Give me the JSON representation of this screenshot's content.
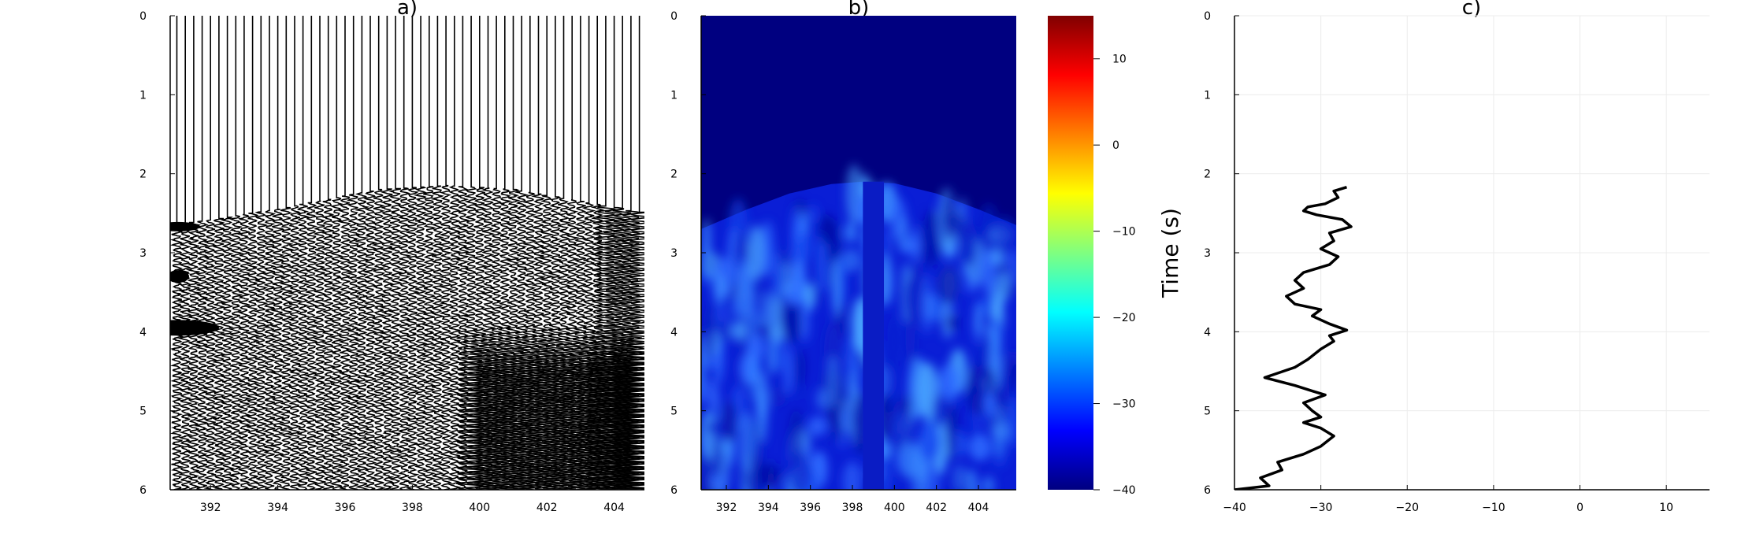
{
  "chart_data": [
    {
      "type": "line",
      "title": "a)",
      "xlabel": "",
      "ylabel": "",
      "xlim": [
        390.8,
        404.9
      ],
      "ylim": [
        0,
        6
      ],
      "y_reversed": true,
      "xticks": [
        "392",
        "394",
        "396",
        "398",
        "400",
        "402",
        "404"
      ],
      "yticks": [
        "0",
        "1",
        "2",
        "3",
        "4",
        "5",
        "6"
      ],
      "trace_spacing": 0.25,
      "first_arrival_time_at_x": {
        "x": [
          391,
          394,
          397,
          399,
          401,
          403,
          404.9
        ],
        "y": [
          2.65,
          2.45,
          2.2,
          2.15,
          2.2,
          2.35,
          2.5
        ]
      },
      "series": [],
      "grid": false
    },
    {
      "type": "heatmap",
      "title": "b)",
      "xlabel": "",
      "ylabel": "",
      "xlim": [
        390.8,
        405.8
      ],
      "ylim": [
        0,
        6
      ],
      "y_reversed": true,
      "xticks": [
        "392",
        "394",
        "396",
        "398",
        "400",
        "402",
        "404"
      ],
      "yticks": [
        "0",
        "1",
        "2",
        "3",
        "4",
        "5",
        "6"
      ],
      "colormap": "jet",
      "background_value": -40,
      "mute_boundary": {
        "x": [
          390.8,
          393,
          395,
          397,
          398.5,
          400,
          402,
          404,
          405.8
        ],
        "y": [
          2.7,
          2.45,
          2.25,
          2.13,
          2.1,
          2.12,
          2.25,
          2.45,
          2.65
        ]
      },
      "dead_trace_x": [
        398.5,
        399.5
      ],
      "colorbar": {
        "range": [
          -40,
          15
        ],
        "ticks": [
          10,
          0,
          -10,
          -20,
          -30,
          -40
        ],
        "tick_labels": [
          "10",
          "0",
          "−10",
          "−20",
          "−30",
          "−40"
        ]
      }
    },
    {
      "type": "line",
      "title": "c)",
      "xlabel": "",
      "ylabel": "Time (s)",
      "xlim": [
        -40,
        15
      ],
      "ylim": [
        0,
        6
      ],
      "y_reversed": true,
      "xticks": [
        "−40",
        "−30",
        "−20",
        "−10",
        "0",
        "10"
      ],
      "yticks": [
        "0",
        "1",
        "2",
        "3",
        "4",
        "5",
        "6"
      ],
      "grid": true,
      "series": [
        {
          "color": "#000000",
          "points": [
            [
              -27,
              2.17
            ],
            [
              -28.5,
              2.22
            ],
            [
              -28,
              2.3
            ],
            [
              -29.5,
              2.38
            ],
            [
              -31.5,
              2.42
            ],
            [
              -32,
              2.47
            ],
            [
              -30.5,
              2.52
            ],
            [
              -27.5,
              2.58
            ],
            [
              -26.5,
              2.67
            ],
            [
              -29,
              2.75
            ],
            [
              -28.5,
              2.85
            ],
            [
              -30,
              2.95
            ],
            [
              -28,
              3.05
            ],
            [
              -29,
              3.15
            ],
            [
              -32,
              3.25
            ],
            [
              -33,
              3.35
            ],
            [
              -32,
              3.45
            ],
            [
              -34,
              3.55
            ],
            [
              -33,
              3.65
            ],
            [
              -30,
              3.72
            ],
            [
              -31,
              3.8
            ],
            [
              -29,
              3.9
            ],
            [
              -27,
              3.98
            ],
            [
              -29,
              4.05
            ],
            [
              -28.5,
              4.12
            ],
            [
              -30,
              4.22
            ],
            [
              -31.5,
              4.35
            ],
            [
              -33,
              4.45
            ],
            [
              -36.5,
              4.58
            ],
            [
              -33,
              4.68
            ],
            [
              -31,
              4.75
            ],
            [
              -29.5,
              4.8
            ],
            [
              -32,
              4.9
            ],
            [
              -31,
              5.0
            ],
            [
              -30,
              5.08
            ],
            [
              -32,
              5.15
            ],
            [
              -30,
              5.22
            ],
            [
              -28.5,
              5.32
            ],
            [
              -30,
              5.45
            ],
            [
              -32,
              5.55
            ],
            [
              -35,
              5.65
            ],
            [
              -34.5,
              5.75
            ],
            [
              -37,
              5.85
            ],
            [
              -36,
              5.95
            ],
            [
              -40,
              6.0
            ]
          ]
        }
      ]
    }
  ]
}
